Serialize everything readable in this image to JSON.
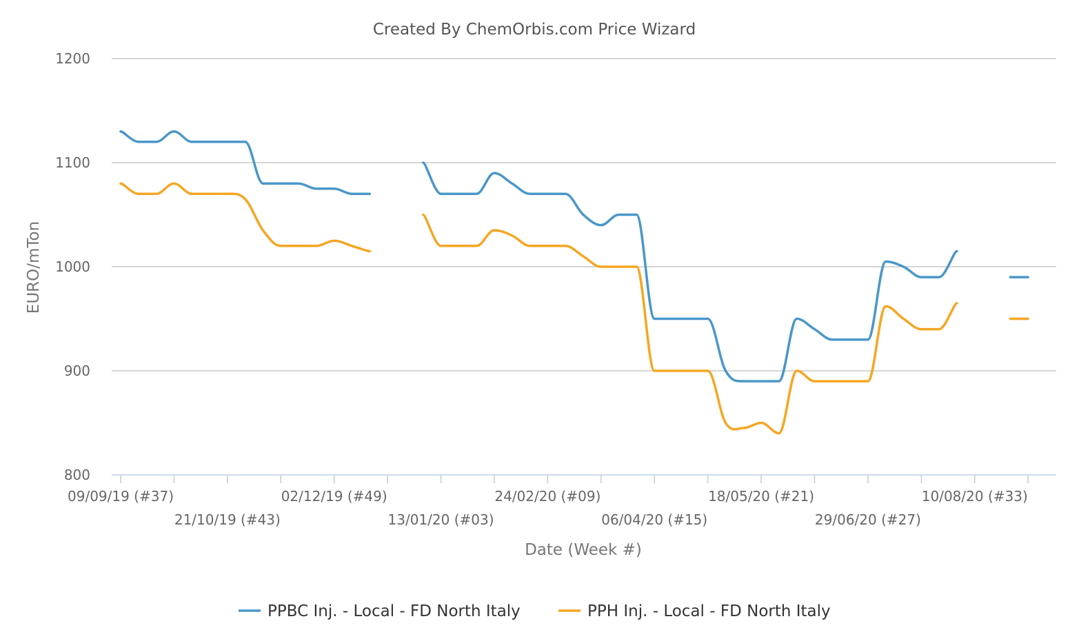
{
  "chart_data": {
    "type": "line",
    "title": "Created By ChemOrbis.com Price Wizard",
    "xlabel": "Date (Week #)",
    "ylabel": "EURO/mTon",
    "ylim": [
      800,
      1200
    ],
    "yticks": [
      800,
      900,
      1000,
      1100,
      1200
    ],
    "grid": true,
    "legend_position": "bottom",
    "x_week_index_range": [
      0,
      52
    ],
    "xtick_labels": [
      {
        "week": 0,
        "label": "09/09/19 (#37)"
      },
      {
        "week": 6,
        "label": "21/10/19 (#43)"
      },
      {
        "week": 12,
        "label": "02/12/19 (#49)"
      },
      {
        "week": 18,
        "label": "13/01/20 (#03)"
      },
      {
        "week": 24,
        "label": "24/02/20 (#09)"
      },
      {
        "week": 30,
        "label": "06/04/20 (#15)"
      },
      {
        "week": 36,
        "label": "18/05/20 (#21)"
      },
      {
        "week": 42,
        "label": "29/06/20 (#27)"
      },
      {
        "week": 48,
        "label": "10/08/20 (#33)"
      }
    ],
    "series": [
      {
        "name": "PPBC Inj. - Local - FD North Italy",
        "color": "#4a97c9",
        "segments": [
          [
            [
              0,
              1130
            ],
            [
              1,
              1120
            ],
            [
              2,
              1120
            ],
            [
              3,
              1130
            ],
            [
              4,
              1120
            ],
            [
              5,
              1120
            ],
            [
              6,
              1120
            ],
            [
              7,
              1120
            ],
            [
              8,
              1080
            ],
            [
              9,
              1080
            ],
            [
              10,
              1080
            ],
            [
              11,
              1075
            ],
            [
              12,
              1075
            ],
            [
              13,
              1070
            ],
            [
              14,
              1070
            ]
          ],
          [
            [
              17,
              1100
            ],
            [
              18,
              1070
            ],
            [
              19,
              1070
            ],
            [
              20,
              1070
            ],
            [
              21,
              1090
            ],
            [
              22,
              1080
            ],
            [
              23,
              1070
            ],
            [
              24,
              1070
            ],
            [
              25,
              1070
            ],
            [
              26,
              1050
            ],
            [
              27,
              1040
            ],
            [
              28,
              1050
            ],
            [
              29,
              1050
            ],
            [
              30,
              950
            ],
            [
              31,
              950
            ],
            [
              32,
              950
            ],
            [
              33,
              950
            ],
            [
              34,
              900
            ],
            [
              35,
              890
            ],
            [
              36,
              890
            ],
            [
              37,
              890
            ],
            [
              38,
              950
            ],
            [
              39,
              940
            ],
            [
              40,
              930
            ],
            [
              41,
              930
            ],
            [
              42,
              930
            ],
            [
              43,
              1005
            ],
            [
              44,
              1000
            ],
            [
              45,
              990
            ],
            [
              46,
              990
            ],
            [
              47,
              1015
            ]
          ],
          [
            [
              50,
              990
            ],
            [
              51,
              990
            ]
          ]
        ]
      },
      {
        "name": "PPH Inj. - Local - FD North Italy",
        "color": "#f5a623",
        "segments": [
          [
            [
              0,
              1080
            ],
            [
              1,
              1070
            ],
            [
              2,
              1070
            ],
            [
              3,
              1080
            ],
            [
              4,
              1070
            ],
            [
              5,
              1070
            ],
            [
              6,
              1070
            ],
            [
              7,
              1065
            ],
            [
              8,
              1035
            ],
            [
              9,
              1020
            ],
            [
              10,
              1020
            ],
            [
              11,
              1020
            ],
            [
              12,
              1025
            ],
            [
              13,
              1020
            ],
            [
              14,
              1015
            ]
          ],
          [
            [
              17,
              1050
            ],
            [
              18,
              1020
            ],
            [
              19,
              1020
            ],
            [
              20,
              1020
            ],
            [
              21,
              1035
            ],
            [
              22,
              1030
            ],
            [
              23,
              1020
            ],
            [
              24,
              1020
            ],
            [
              25,
              1020
            ],
            [
              26,
              1010
            ],
            [
              27,
              1000
            ],
            [
              28,
              1000
            ],
            [
              29,
              1000
            ],
            [
              30,
              900
            ],
            [
              31,
              900
            ],
            [
              32,
              900
            ],
            [
              33,
              900
            ],
            [
              34,
              850
            ],
            [
              35,
              845
            ],
            [
              36,
              850
            ],
            [
              37,
              840
            ],
            [
              38,
              900
            ],
            [
              39,
              890
            ],
            [
              40,
              890
            ],
            [
              41,
              890
            ],
            [
              42,
              890
            ],
            [
              43,
              962
            ],
            [
              44,
              950
            ],
            [
              45,
              940
            ],
            [
              46,
              940
            ],
            [
              47,
              965
            ]
          ],
          [
            [
              50,
              950
            ],
            [
              51,
              950
            ]
          ]
        ]
      }
    ]
  }
}
